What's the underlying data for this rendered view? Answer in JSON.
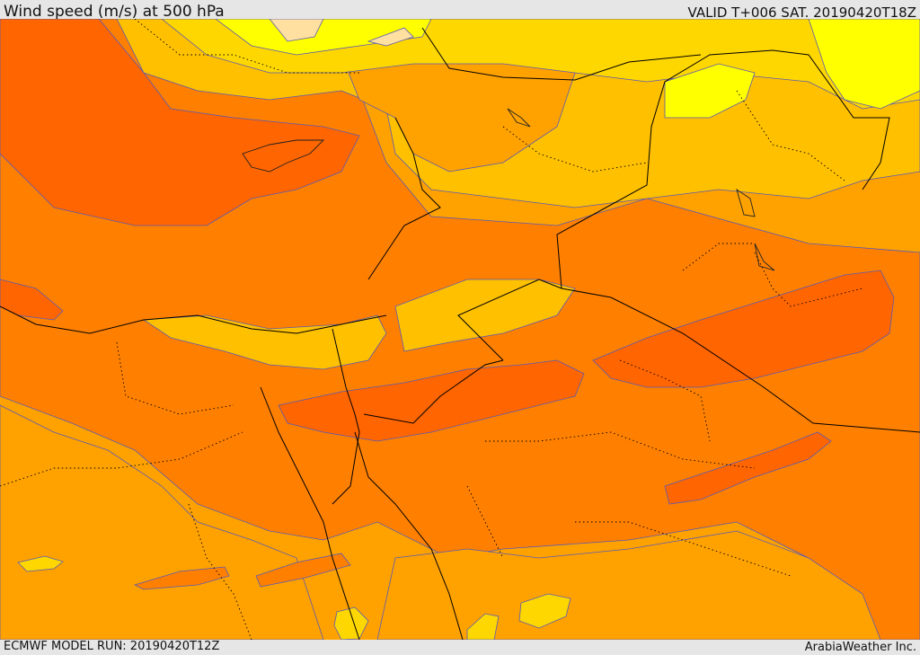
{
  "header": {
    "title": "Wind speed (m/s) at 500 hPa",
    "valid_time": "VALID T+006 SAT. 20190420T18Z"
  },
  "footer": {
    "model_run": "ECMWF MODEL RUN: 20190420T12Z",
    "credit": "ArabiaWeather Inc."
  },
  "colors": {
    "band_light_yellow": "#ffff00",
    "band_yellow": "#ffd700",
    "band_gold": "#ffc000",
    "band_light_orange": "#ffa200",
    "band_orange": "#ff8000",
    "band_dark_orange": "#ff6500",
    "band_pale": "#ffe0a0",
    "contour_line": "#5a5ab4",
    "border_line": "#000000"
  }
}
